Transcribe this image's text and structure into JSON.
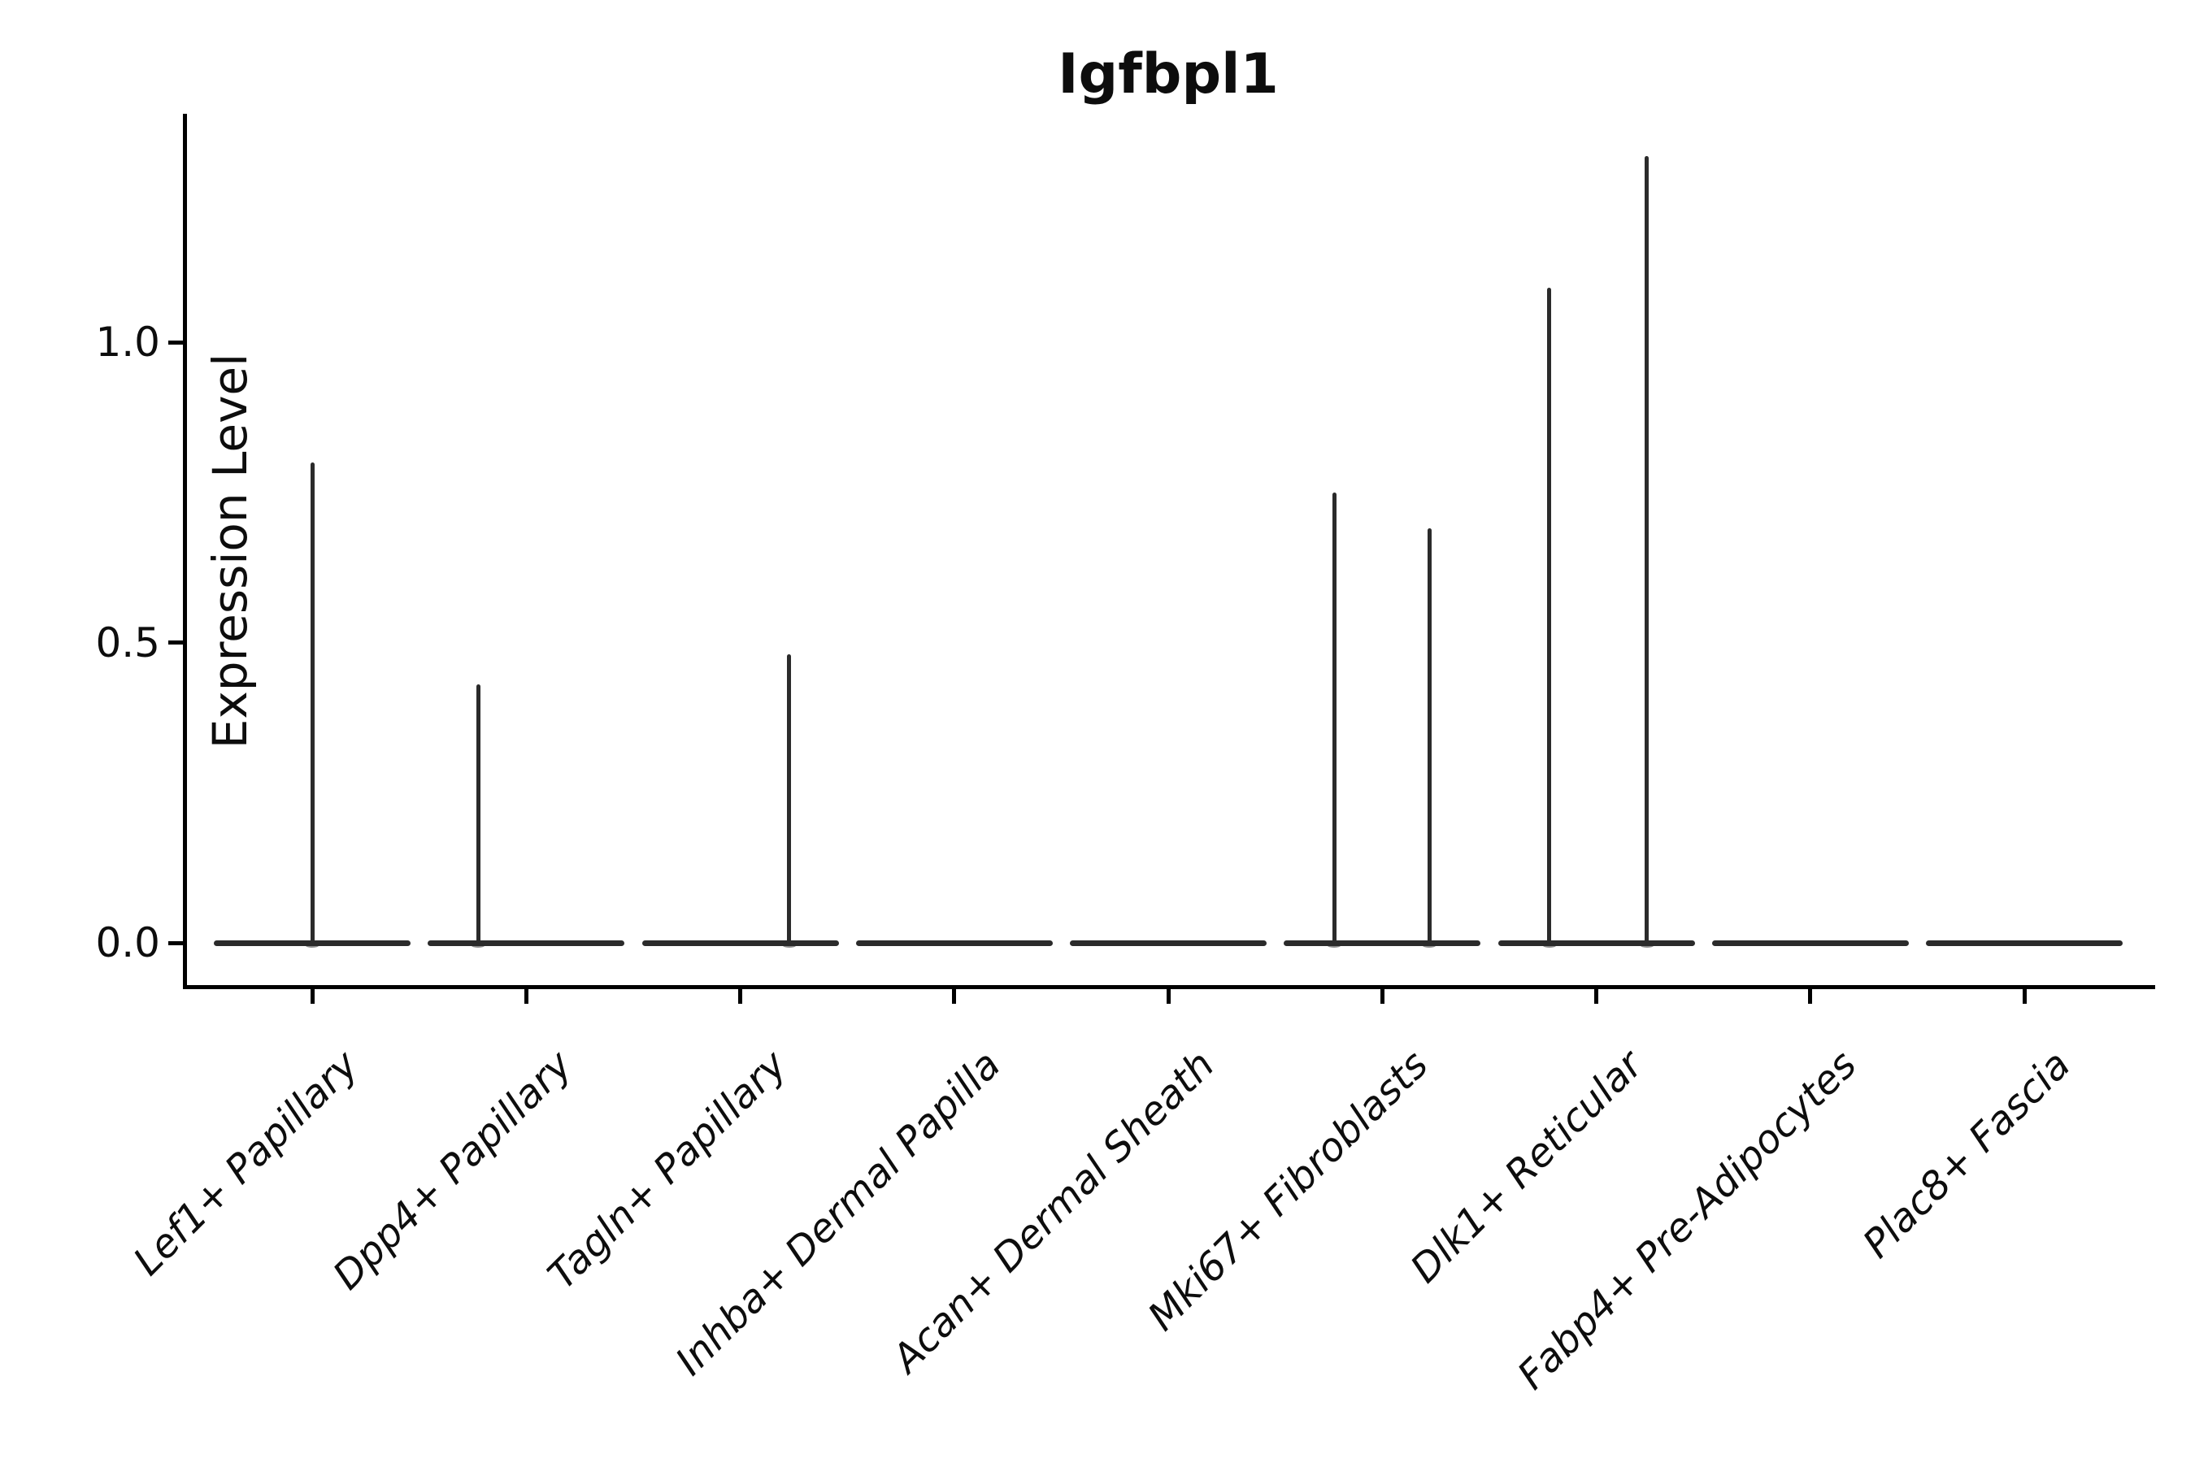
{
  "chart_data": {
    "type": "violin",
    "title": "Igfbpl1",
    "ylabel": "Expression Level",
    "xlabel": "",
    "grid": false,
    "legend": false,
    "ylim": [
      -0.07,
      1.38
    ],
    "y_ticks": [
      {
        "label": "0.0",
        "value": 0.0
      },
      {
        "label": "0.5",
        "value": 0.5
      },
      {
        "label": "1.0",
        "value": 1.0
      }
    ],
    "categories": [
      "Lef1+ Papillary",
      "Dpp4+ Papillary",
      "Tagln+ Papillary",
      "Inhba+ Dermal Papilla",
      "Acan+ Dermal Sheath",
      "Mki67+ Fibroblasts",
      "Dlk1+ Reticular",
      "Fabp4+ Pre-Adipocytes",
      "Plac8+ Fascia"
    ],
    "violins": [
      {
        "category": "Lef1+ Papillary",
        "baseline_value": 0,
        "spikes": [
          {
            "value": 0.8,
            "offset": 0
          }
        ]
      },
      {
        "category": "Dpp4+ Papillary",
        "baseline_value": 0,
        "spikes": [
          {
            "value": 0.43,
            "offset": -59
          }
        ]
      },
      {
        "category": "Tagln+ Papillary",
        "baseline_value": 0,
        "spikes": [
          {
            "value": 0.48,
            "offset": 60
          }
        ]
      },
      {
        "category": "Inhba+ Dermal Papilla",
        "baseline_value": 0,
        "spikes": []
      },
      {
        "category": "Acan+ Dermal Sheath",
        "baseline_value": 0,
        "spikes": []
      },
      {
        "category": "Mki67+ Fibroblasts",
        "baseline_value": 0,
        "spikes": [
          {
            "value": 0.75,
            "offset": -59
          },
          {
            "value": 0.69,
            "offset": 58
          }
        ]
      },
      {
        "category": "Dlk1+ Reticular",
        "baseline_value": 0,
        "spikes": [
          {
            "value": 1.09,
            "offset": -58
          },
          {
            "value": 1.31,
            "offset": 62
          }
        ]
      },
      {
        "category": "Fabp4+ Pre-Adipocytes",
        "baseline_value": 0,
        "spikes": []
      },
      {
        "category": "Plac8+ Fascia",
        "baseline_value": 0,
        "spikes": []
      }
    ],
    "colors": {
      "violin": "#2b2b2b",
      "axis": "#000000",
      "text": "#0d0d0d",
      "background": "#ffffff"
    }
  }
}
